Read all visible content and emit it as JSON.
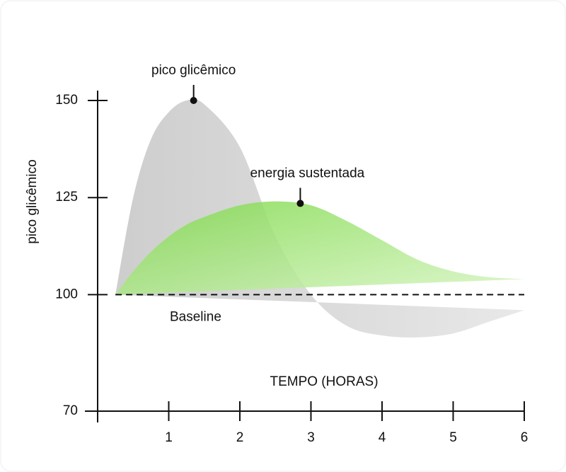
{
  "chart_data": {
    "type": "area",
    "x_label": "TEMPO (HORAS)",
    "y_label": "pico glicêmico",
    "x": [
      0.25,
      0.5,
      0.75,
      1,
      1.25,
      1.5,
      2,
      2.5,
      3,
      3.5,
      4,
      4.5,
      5,
      5.5,
      6
    ],
    "series": [
      {
        "color": "#c4c4c4",
        "values": [
          100,
          125,
          140,
          147,
          150,
          149,
          138,
          115,
          100,
          92,
          89.5,
          89,
          90,
          93,
          96
        ]
      },
      {
        "color": "#8fe05c",
        "values": [
          100,
          106,
          111,
          115,
          118,
          120,
          123,
          124,
          123,
          119,
          114,
          109,
          106,
          104.5,
          104
        ]
      }
    ],
    "baseline": {
      "value": 100,
      "label": "Baseline"
    },
    "annotations": [
      {
        "text": "pico glicêmico",
        "x": 1.35,
        "y": 150
      },
      {
        "text": "energia sustentada",
        "x": 2.85,
        "y": 123.5
      }
    ],
    "xlim": [
      0,
      6
    ],
    "xticks": [
      1,
      2,
      3,
      4,
      5,
      6
    ],
    "ylim": [
      70,
      150
    ],
    "yticks": [
      70,
      100,
      125,
      150
    ]
  }
}
